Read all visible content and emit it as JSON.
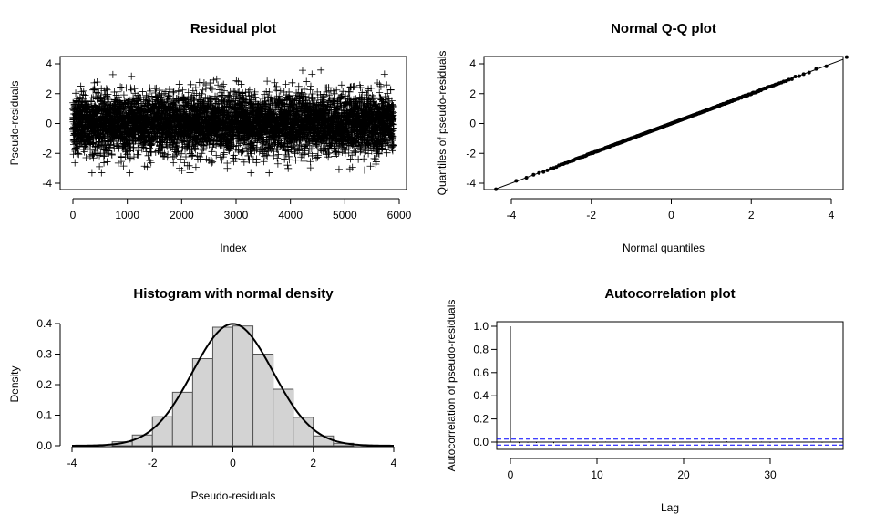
{
  "chart_data": [
    {
      "type": "scatter",
      "title": "Residual plot",
      "xlabel": "Index",
      "ylabel": "Pseudo-residuals",
      "xlim": [
        0,
        5900
      ],
      "ylim": [
        -4,
        4
      ],
      "xticks": [
        0,
        1000,
        2000,
        3000,
        4000,
        5000,
        6000
      ],
      "yticks": [
        -4,
        -2,
        0,
        2,
        4
      ],
      "marker": "plus",
      "n_points": 5900,
      "distribution": "standard normal, range about -3.3 to 3.7",
      "color": "#000000"
    },
    {
      "type": "scatter",
      "title": "Normal Q-Q plot",
      "xlabel": "Normal quantiles",
      "ylabel": "Quantiles of pseudo-residuals",
      "xlim": [
        -4,
        4
      ],
      "ylim": [
        -4,
        4
      ],
      "xticks": [
        -4,
        -2,
        0,
        2,
        4
      ],
      "yticks": [
        -4,
        -2,
        0,
        2,
        4
      ],
      "reference_line": {
        "slope": 1,
        "intercept": 0
      },
      "marker": "dot",
      "color": "#000000"
    },
    {
      "type": "bar",
      "title": "Histogram with normal density",
      "xlabel": "Pseudo-residuals",
      "ylabel": "Density",
      "xlim": [
        -4,
        4
      ],
      "ylim": [
        0,
        0.4
      ],
      "xticks": [
        -4,
        -2,
        0,
        2,
        4
      ],
      "yticks": [
        0,
        0.1,
        0.2,
        0.3,
        0.4
      ],
      "bin_edges": [
        -3,
        -2.5,
        -2,
        -1.5,
        -1,
        -0.5,
        0,
        0.5,
        1,
        1.5,
        2,
        2.5,
        3
      ],
      "values": [
        0.013,
        0.035,
        0.095,
        0.175,
        0.285,
        0.388,
        0.392,
        0.3,
        0.185,
        0.093,
        0.032,
        0.008
      ],
      "bar_color": "#d3d3d3",
      "overlay": {
        "type": "line",
        "name": "normal density",
        "mean": 0,
        "sd": 1
      }
    },
    {
      "type": "bar",
      "title": "Autocorrelation plot",
      "xlabel": "Lag",
      "ylabel": "Autocorrelation of pseudo-residuals",
      "xlim": [
        0,
        38
      ],
      "ylim": [
        0,
        1
      ],
      "xticks": [
        0,
        10,
        20,
        30
      ],
      "yticks": [
        0.0,
        0.2,
        0.4,
        0.6,
        0.8,
        1.0
      ],
      "lags": [
        0,
        1,
        2,
        3,
        4,
        5,
        6,
        7,
        8,
        9,
        10,
        11,
        12,
        13,
        14,
        15,
        16,
        17,
        18,
        19,
        20,
        21,
        22,
        23,
        24,
        25,
        26,
        27,
        28,
        29,
        30,
        31,
        32,
        33,
        34,
        35,
        36,
        37,
        38
      ],
      "values": [
        1,
        -0.01,
        -0.006,
        -0.008,
        0.004,
        -0.01,
        0.003,
        -0.005,
        0.002,
        -0.003,
        -0.006,
        0.005,
        -0.004,
        0.004,
        -0.007,
        0.003,
        0.006,
        -0.004,
        0.003,
        -0.005,
        0.004,
        -0.003,
        0.005,
        -0.006,
        0.004,
        0.007,
        -0.005,
        0.003,
        -0.004,
        0.005,
        -0.006,
        0.004,
        -0.005,
        0.003,
        -0.004,
        0.005,
        -0.006,
        0.004,
        -0.003
      ],
      "confidence_band": 0.026,
      "band_color": "#0000ff"
    }
  ]
}
